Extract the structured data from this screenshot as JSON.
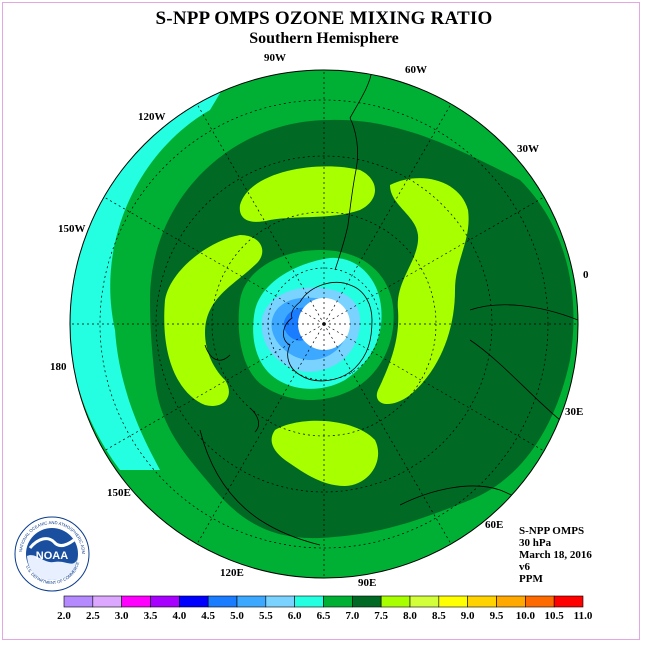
{
  "title": "S-NPP OMPS OZONE MIXING RATIO",
  "subtitle": "Southern Hemisphere",
  "longitude_labels": [
    "90W",
    "60W",
    "30W",
    "0",
    "30E",
    "60E",
    "90E",
    "120E",
    "150E",
    "180",
    "150W",
    "120W"
  ],
  "info": {
    "instrument": "S-NPP OMPS",
    "level": "30 hPa",
    "date": "March 18, 2016",
    "version": "v6",
    "units": "PPM"
  },
  "logo": {
    "text": "NOAA",
    "ring_text": "NATIONAL OCEANIC AND ATMOSPHERIC ADMINISTRATION",
    "ring_text_bottom": "U.S. DEPARTMENT OF COMMERCE"
  },
  "colorbar": {
    "ticks": [
      "2.0",
      "2.5",
      "3.0",
      "3.5",
      "4.0",
      "4.5",
      "5.0",
      "5.5",
      "6.0",
      "6.5",
      "7.0",
      "7.5",
      "8.0",
      "8.5",
      "9.0",
      "9.5",
      "10.0",
      "10.5",
      "11.0"
    ],
    "colors": [
      "#b58aff",
      "#dca8ff",
      "#ff00ff",
      "#a800ff",
      "#0000ff",
      "#1a7cff",
      "#3ca8ff",
      "#7ad2ff",
      "#23ffe0",
      "#00b035",
      "#006a25",
      "#a8ff00",
      "#d2ff3a",
      "#ffff00",
      "#ffd200",
      "#ffa800",
      "#ff6a00",
      "#ff0000",
      "#8a5a3a"
    ]
  },
  "map_colors": {
    "outer": "#00b035",
    "dark": "#006a25",
    "lime": "#a8ff00",
    "green_ring": "#00b035",
    "cyan": "#23ffe0",
    "light_blue": "#7ad2ff",
    "mid_blue": "#3ca8ff",
    "blue": "#1a7cff",
    "pole": "#ffffff"
  }
}
